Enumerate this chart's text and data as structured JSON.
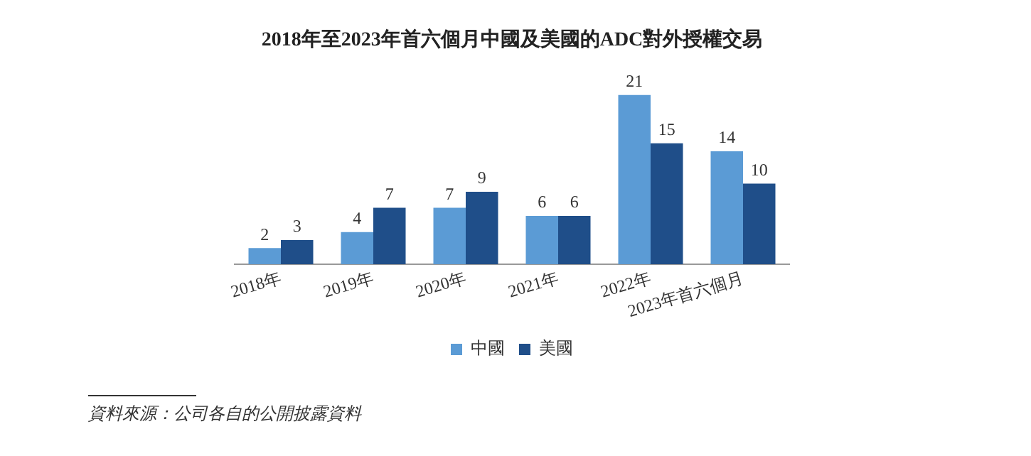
{
  "chart_data": {
    "type": "bar",
    "title": "2018年至2023年首六個月中國及美國的ADC對外授權交易",
    "categories": [
      "2018年",
      "2019年",
      "2020年",
      "2021年",
      "2022年",
      "2023年首六個月"
    ],
    "series": [
      {
        "name": "中國",
        "color": "#5b9bd5",
        "values": [
          2,
          4,
          7,
          6,
          21,
          14
        ]
      },
      {
        "name": "美國",
        "color": "#1f4e89",
        "values": [
          3,
          7,
          9,
          6,
          15,
          10
        ]
      }
    ],
    "ylim": [
      0,
      21
    ],
    "data_labels": true,
    "legend": "bottom",
    "grid": false,
    "tick_labels": "x",
    "annotations": [
      "資料來源：公司各自的公開披露資料"
    ]
  }
}
